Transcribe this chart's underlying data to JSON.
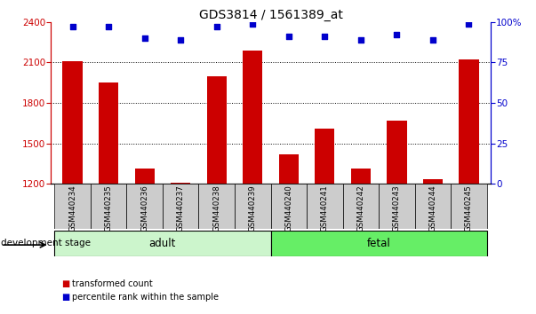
{
  "title": "GDS3814 / 1561389_at",
  "categories": [
    "GSM440234",
    "GSM440235",
    "GSM440236",
    "GSM440237",
    "GSM440238",
    "GSM440239",
    "GSM440240",
    "GSM440241",
    "GSM440242",
    "GSM440243",
    "GSM440244",
    "GSM440245"
  ],
  "transformed_count": [
    2110,
    1950,
    1310,
    1210,
    2000,
    2185,
    1420,
    1610,
    1310,
    1670,
    1235,
    2120
  ],
  "percentile_rank": [
    97,
    97,
    90,
    89,
    97,
    99,
    91,
    91,
    89,
    92,
    89,
    99
  ],
  "bar_color": "#cc0000",
  "dot_color": "#0000cc",
  "ylim_left": [
    1200,
    2400
  ],
  "ylim_right": [
    0,
    100
  ],
  "yticks_left": [
    1200,
    1500,
    1800,
    2100,
    2400
  ],
  "yticks_right": [
    0,
    25,
    50,
    75,
    100
  ],
  "yticklabels_right": [
    "0",
    "25",
    "50",
    "75",
    "100%"
  ],
  "xlabel": "development stage",
  "legend_bar": "transformed count",
  "legend_dot": "percentile rank within the sample",
  "bar_width": 0.55,
  "tick_bg_color": "#cccccc",
  "adult_color": "#ccf5cc",
  "fetal_color": "#66ee66",
  "adult_range": [
    0,
    5
  ],
  "fetal_range": [
    6,
    11
  ],
  "grid_ticks": [
    2100,
    1800,
    1500
  ],
  "title_fontsize": 10
}
